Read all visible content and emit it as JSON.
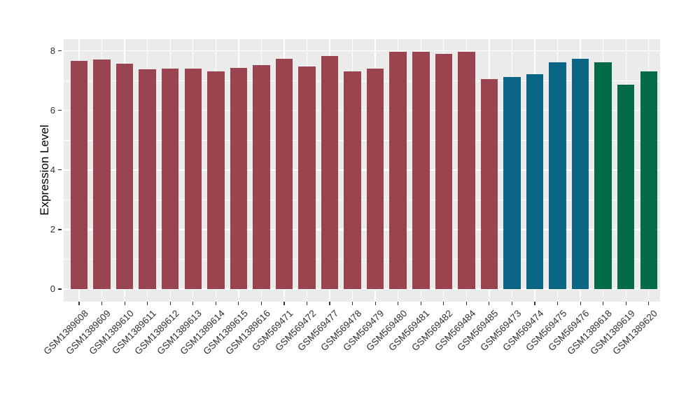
{
  "chart_data": {
    "type": "bar",
    "title": "",
    "xlabel": "",
    "ylabel": "Expression Level",
    "ylim": [
      0,
      8.4
    ],
    "yticks": [
      0,
      2,
      4,
      6,
      8
    ],
    "yticks_minor": [
      1,
      3,
      5,
      7
    ],
    "grid": "major and minor horizontal + major vertical, white lines on gray panel",
    "legend_position": "none",
    "categories": [
      "GSM1389608",
      "GSM1389609",
      "GSM1389610",
      "GSM1389611",
      "GSM1389612",
      "GSM1389613",
      "GSM1389614",
      "GSM1389615",
      "GSM1389616",
      "GSM569471",
      "GSM569472",
      "GSM569477",
      "GSM569478",
      "GSM569479",
      "GSM569480",
      "GSM569481",
      "GSM569482",
      "GSM569484",
      "GSM569485",
      "GSM569473",
      "GSM569474",
      "GSM569475",
      "GSM569476",
      "GSM1389618",
      "GSM1389619",
      "GSM1389620"
    ],
    "values": [
      7.67,
      7.71,
      7.56,
      7.37,
      7.41,
      7.4,
      7.32,
      7.42,
      7.53,
      7.74,
      7.48,
      7.83,
      7.32,
      7.41,
      7.97,
      7.97,
      7.91,
      7.97,
      7.05,
      7.13,
      7.22,
      7.61,
      7.74,
      7.61,
      6.87,
      7.32
    ],
    "bar_groups": [
      0,
      0,
      0,
      0,
      0,
      0,
      0,
      0,
      0,
      0,
      0,
      0,
      0,
      0,
      0,
      0,
      0,
      0,
      0,
      1,
      1,
      1,
      1,
      2,
      2,
      2
    ],
    "group_colors": [
      "#9A4450",
      "#0B6585",
      "#046B47"
    ],
    "colors": {
      "panel_background": "#EBEBEB",
      "grid": "#FFFFFF",
      "tick_mark": "#333333",
      "axis_text": "#303030",
      "axis_title": "#000000"
    }
  }
}
